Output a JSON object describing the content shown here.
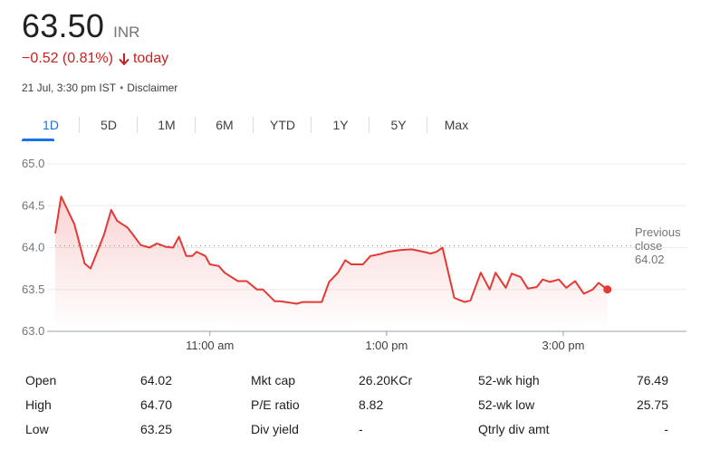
{
  "quote": {
    "price": "63.50",
    "currency": "INR",
    "change": "−0.52 (0.81%)",
    "change_period": "today",
    "timestamp": "21 Jul, 3:30 pm IST",
    "disclaimer": "Disclaimer",
    "change_color": "#c5221f"
  },
  "tabs": [
    "1D",
    "5D",
    "1M",
    "6M",
    "YTD",
    "1Y",
    "5Y",
    "Max"
  ],
  "active_tab": "1D",
  "chart_data": {
    "type": "line",
    "title": "",
    "xlabel": "",
    "ylabel": "",
    "ylim": [
      63.0,
      65.0
    ],
    "xlim": [
      "09:15",
      "15:48"
    ],
    "y_ticks": [
      "63.0",
      "63.5",
      "64.0",
      "64.5",
      "65.0"
    ],
    "x_ticks": [
      "11:00 am",
      "1:00 pm",
      "3:00 pm"
    ],
    "x_tick_values": [
      "11:00",
      "13:00",
      "15:00"
    ],
    "reference_line": {
      "label": [
        "Previous",
        "close",
        "64.02"
      ],
      "value": 64.02
    },
    "line_color": "#e53935",
    "grid": false,
    "series": [
      {
        "x": [
          "09:15",
          "09:19",
          "09:28",
          "09:35",
          "09:39",
          "09:48",
          "09:53",
          "09:57",
          "10:04",
          "10:08",
          "10:13",
          "10:19",
          "10:24",
          "10:30",
          "10:35",
          "10:39",
          "10:44",
          "10:48",
          "10:51",
          "10:57",
          "11:00",
          "11:06",
          "11:10",
          "11:19",
          "11:25",
          "11:32",
          "11:36",
          "11:44",
          "11:48",
          "11:59",
          "12:03",
          "12:12",
          "12:16",
          "12:21",
          "12:27",
          "12:32",
          "12:36",
          "12:44",
          "12:49",
          "12:55",
          "13:01",
          "13:09",
          "13:17",
          "13:25",
          "13:30",
          "13:34",
          "13:38",
          "13:46",
          "13:53",
          "13:57",
          "14:04",
          "14:10",
          "14:14",
          "14:21",
          "14:25",
          "14:31",
          "14:36",
          "14:42",
          "14:46",
          "14:51",
          "14:57",
          "15:02",
          "15:08",
          "15:14",
          "15:20",
          "15:24",
          "15:30"
        ],
        "values": [
          64.17,
          64.61,
          64.28,
          63.81,
          63.75,
          64.15,
          64.45,
          64.32,
          64.24,
          64.15,
          64.03,
          64.0,
          64.05,
          64.01,
          64.0,
          64.13,
          63.9,
          63.9,
          63.95,
          63.9,
          63.8,
          63.78,
          63.7,
          63.6,
          63.6,
          63.5,
          63.5,
          63.36,
          63.36,
          63.33,
          63.35,
          63.35,
          63.35,
          63.59,
          63.7,
          63.85,
          63.8,
          63.8,
          63.9,
          63.92,
          63.95,
          63.97,
          63.98,
          63.95,
          63.93,
          63.95,
          64.0,
          63.4,
          63.35,
          63.37,
          63.7,
          63.5,
          63.7,
          63.52,
          63.69,
          63.65,
          63.51,
          63.53,
          63.62,
          63.59,
          63.62,
          63.52,
          63.6,
          63.45,
          63.5,
          63.58,
          63.5
        ]
      }
    ]
  },
  "stats": [
    {
      "label": "Open",
      "value": "64.02"
    },
    {
      "label": "High",
      "value": "64.70"
    },
    {
      "label": "Low",
      "value": "63.25"
    },
    {
      "label": "Mkt cap",
      "value": "26.20KCr"
    },
    {
      "label": "P/E ratio",
      "value": "8.82"
    },
    {
      "label": "Div yield",
      "value": "-"
    },
    {
      "label": "52-wk high",
      "value": "76.49"
    },
    {
      "label": "52-wk low",
      "value": "25.75"
    },
    {
      "label": "Qtrly div amt",
      "value": "-"
    }
  ]
}
